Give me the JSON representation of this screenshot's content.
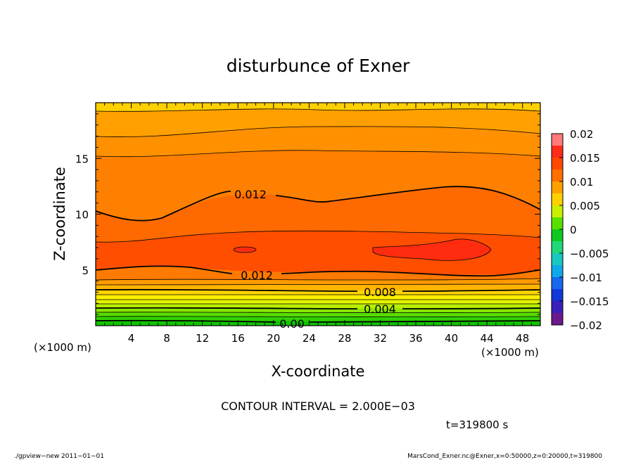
{
  "chart_data": {
    "type": "heatmap",
    "title": "disturbunce of Exner",
    "xlabel": "X-coordinate",
    "ylabel": "Z-coordinate",
    "x_unit_left": "(×1000 m)",
    "x_unit_right": "(×1000 m)",
    "xlim": [
      0,
      50
    ],
    "ylim": [
      0,
      20
    ],
    "x_ticks": [
      4,
      8,
      12,
      16,
      20,
      24,
      28,
      32,
      36,
      40,
      44,
      48
    ],
    "y_ticks": [
      5,
      10,
      15
    ],
    "colorbar": {
      "range": [
        -0.02,
        0.02
      ],
      "step": 0.0025,
      "tick_values": [
        0.02,
        0.015,
        0.01,
        0.005,
        0,
        -0.005,
        -0.01,
        -0.015,
        -0.02
      ],
      "tick_labels": [
        "0.02",
        "0.015",
        "0.01",
        "0.005",
        "0",
        "−0.005",
        "−0.01",
        "−0.015",
        "−0.02"
      ],
      "colors": [
        "#6a1a8c",
        "#3a20b8",
        "#1038d8",
        "#1868ee",
        "#10a8e8",
        "#18c8c0",
        "#20d878",
        "#10c820",
        "#58e000",
        "#c8f000",
        "#ffd000",
        "#ffa000",
        "#ff7000",
        "#ff4800",
        "#ff2c1a",
        "#ff7a7a"
      ]
    },
    "contour_interval_label": "CONTOUR INTERVAL = 2.000E−03",
    "contour_labels": [
      "0.012",
      "0.012",
      "0.008",
      "0.004",
      "0.00"
    ],
    "time_label": "t=319800 s"
  },
  "footer": {
    "left": "./gpview−new  2011−01−01",
    "right": "MarsCond_Exner.nc@Exner,x=0:50000,z=0:20000,t=319800"
  }
}
